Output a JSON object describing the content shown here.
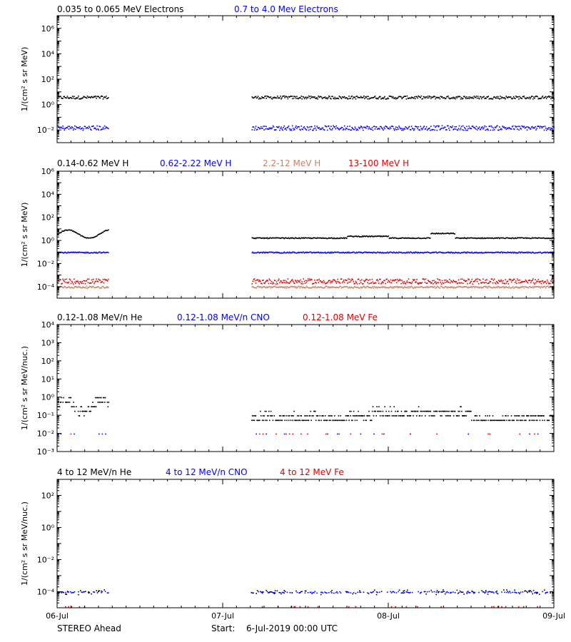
{
  "colors": {
    "black": "#000000",
    "blue": "#0000ff",
    "salmon": "#c8826a",
    "red": "#e00000",
    "magenta": "#cc00cc"
  },
  "x_axis": {
    "labels": [
      "06-Jul",
      "07-Jul",
      "08-Jul",
      "09-Jul"
    ],
    "range_days": [
      0,
      3
    ]
  },
  "footer": {
    "spacecraft": "STEREO Ahead",
    "start_label": "Start:",
    "start_value": "6-Jul-2019 00:00 UTC"
  },
  "chart_data": [
    {
      "type": "scatter",
      "log_y": true,
      "ylabel": "1/(cm² s sr MeV)",
      "ylim_exp": [
        -3,
        7
      ],
      "yticks": [
        "10⁻²",
        "10⁰",
        "10²",
        "10⁴",
        "10⁶"
      ],
      "ytick_exp": [
        -2,
        0,
        2,
        4,
        6
      ],
      "data_gap_days": [
        0.31,
        1.17
      ],
      "series": [
        {
          "name": "0.035 to 0.065 MeV Electrons",
          "color": "#000000",
          "level_log10": 0.6,
          "jitter": 0.12
        },
        {
          "name": "0.7 to 4.0 Mev Electrons",
          "color": "#0000ff",
          "level_log10": -1.8,
          "jitter": 0.18
        }
      ]
    },
    {
      "type": "scatter",
      "log_y": true,
      "ylabel": "1/(cm² s sr MeV)",
      "ylim_exp": [
        -5,
        6
      ],
      "yticks": [
        "10⁻⁴",
        "10⁻²",
        "10⁰",
        "10²",
        "10⁴",
        "10⁶"
      ],
      "ytick_exp": [
        -4,
        -2,
        0,
        2,
        4,
        6
      ],
      "data_gap_days": [
        0.31,
        1.17
      ],
      "series": [
        {
          "name": "0.14-0.62 MeV H",
          "color": "#000000",
          "level_log10": 0.25,
          "jitter": 0.04
        },
        {
          "name": "0.62-2.22 MeV H",
          "color": "#0000ff",
          "level_log10": -1.0,
          "jitter": 0.05
        },
        {
          "name": "2.2-12 MeV H",
          "color": "#c8826a",
          "level_log10": -4.0,
          "jitter": 0.08
        },
        {
          "name": "13-100 MeV H",
          "color": "#e00000",
          "level_log10": -3.5,
          "jitter": 0.22
        }
      ]
    },
    {
      "type": "scatter",
      "log_y": true,
      "ylabel": "1/(cm² s sr MeV/nuc.)",
      "ylim_exp": [
        -3,
        4
      ],
      "yticks": [
        "10⁻³",
        "10⁻²",
        "10⁻¹",
        "10⁰",
        "10¹",
        "10²",
        "10³",
        "10⁴"
      ],
      "ytick_exp": [
        -3,
        -2,
        -1,
        0,
        1,
        2,
        3,
        4
      ],
      "data_gap_days": [
        0.31,
        1.17
      ],
      "series": [
        {
          "name": "0.12-1.08 MeV/n He",
          "color": "#000000",
          "level_log10": -1.1,
          "jitter": 0.25
        },
        {
          "name": "0.12-1.08 MeV/n CNO",
          "color": "#0000ff",
          "level_log10": -2.0,
          "jitter": 0.0
        },
        {
          "name": "0.12-1.08 MeV Fe",
          "color": "#e00000",
          "level_log10": -2.0,
          "jitter": 0.0
        }
      ]
    },
    {
      "type": "scatter",
      "log_y": true,
      "ylabel": "1/(cm² s sr MeV/nuc.)",
      "ylim_exp": [
        -5,
        3
      ],
      "yticks": [
        "10⁻⁴",
        "10⁻²",
        "10⁰",
        "10²"
      ],
      "ytick_exp": [
        -4,
        -2,
        0,
        2
      ],
      "data_gap_days": [
        0.31,
        1.17
      ],
      "series": [
        {
          "name": "4 to 12 MeV/n He",
          "color": "#000000",
          "level_log10": -4.0,
          "jitter": 0.15
        },
        {
          "name": "4 to 12 MeV/n CNO",
          "color": "#0000ff",
          "level_log10": -4.0,
          "jitter": 0.05
        },
        {
          "name": "4 to 12 MeV Fe",
          "color": "#e00000",
          "level_log10": -4.9,
          "jitter": 0.0
        }
      ]
    }
  ]
}
